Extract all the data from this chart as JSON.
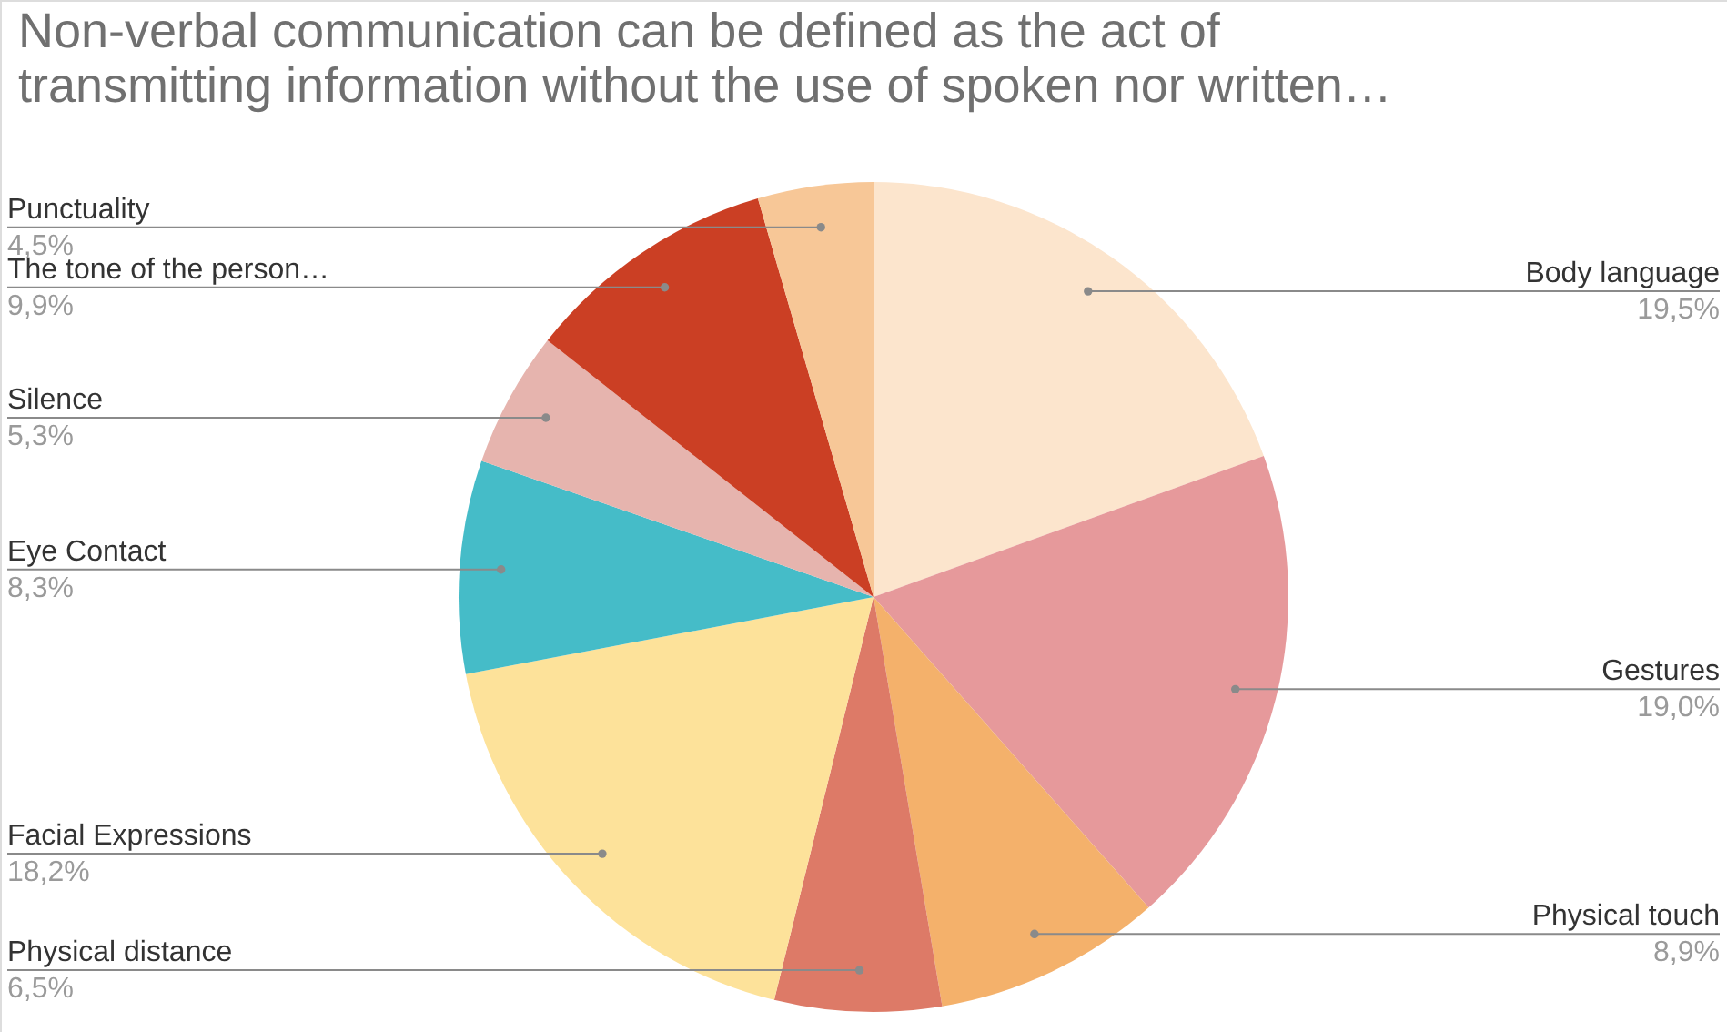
{
  "chart_data": {
    "type": "pie",
    "title": "Non-verbal communication can be defined as the act of\ntransmitting information without the use of spoken nor written…",
    "categories": [
      "Body language",
      "Gestures",
      "Physical touch",
      "Physical distance",
      "Facial Expressions",
      "Eye Contact",
      "Silence",
      "The tone of the person…",
      "Punctuality"
    ],
    "values": [
      19.5,
      19.0,
      8.9,
      6.5,
      18.2,
      8.3,
      5.3,
      9.9,
      4.5
    ],
    "value_labels": [
      "19,5%",
      "19,0%",
      "8,9%",
      "6,5%",
      "18,2%",
      "8,3%",
      "5,3%",
      "9,9%",
      "4,5%"
    ],
    "colors": [
      "#fce5cd",
      "#e6999b",
      "#f4b16b",
      "#dd7a67",
      "#fde29a",
      "#45bcc8",
      "#e6b4ae",
      "#cb3f24",
      "#f7c797"
    ]
  }
}
